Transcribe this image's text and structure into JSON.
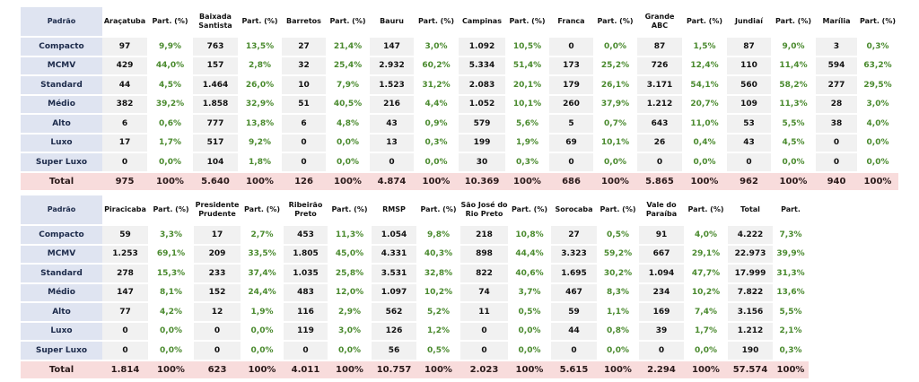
{
  "row_labels": [
    "Compacto",
    "MCMV",
    "Standard",
    "Médio",
    "Alto",
    "Luxo",
    "Super Luxo"
  ],
  "total_label": "Total",
  "header_first": "Padrão",
  "pct_header": "Part. (%)",
  "table1": {
    "cities": [
      {
        "name": "Araçatuba",
        "values": [
          "97",
          "429",
          "44",
          "382",
          "6",
          "17",
          "0"
        ],
        "pcts": [
          "9,9%",
          "44,0%",
          "4,5%",
          "39,2%",
          "0,6%",
          "1,7%",
          "0,0%"
        ],
        "total": "975",
        "total_pct": "100%"
      },
      {
        "name": "Baixada Santista",
        "values": [
          "763",
          "157",
          "1.464",
          "1.858",
          "777",
          "517",
          "104"
        ],
        "pcts": [
          "13,5%",
          "2,8%",
          "26,0%",
          "32,9%",
          "13,8%",
          "9,2%",
          "1,8%"
        ],
        "total": "5.640",
        "total_pct": "100%"
      },
      {
        "name": "Barretos",
        "values": [
          "27",
          "32",
          "10",
          "51",
          "6",
          "0",
          "0"
        ],
        "pcts": [
          "21,4%",
          "25,4%",
          "7,9%",
          "40,5%",
          "4,8%",
          "0,0%",
          "0,0%"
        ],
        "total": "126",
        "total_pct": "100%"
      },
      {
        "name": "Bauru",
        "values": [
          "147",
          "2.932",
          "1.523",
          "216",
          "43",
          "13",
          "0"
        ],
        "pcts": [
          "3,0%",
          "60,2%",
          "31,2%",
          "4,4%",
          "0,9%",
          "0,3%",
          "0,0%"
        ],
        "total": "4.874",
        "total_pct": "100%"
      },
      {
        "name": "Campinas",
        "values": [
          "1.092",
          "5.334",
          "2.083",
          "1.052",
          "579",
          "199",
          "30"
        ],
        "pcts": [
          "10,5%",
          "51,4%",
          "20,1%",
          "10,1%",
          "5,6%",
          "1,9%",
          "0,3%"
        ],
        "total": "10.369",
        "total_pct": "100%"
      },
      {
        "name": "Franca",
        "values": [
          "0",
          "173",
          "179",
          "260",
          "5",
          "69",
          "0"
        ],
        "pcts": [
          "0,0%",
          "25,2%",
          "26,1%",
          "37,9%",
          "0,7%",
          "10,1%",
          "0,0%"
        ],
        "total": "686",
        "total_pct": "100%"
      },
      {
        "name": "Grande ABC",
        "values": [
          "87",
          "726",
          "3.171",
          "1.212",
          "643",
          "26",
          "0"
        ],
        "pcts": [
          "1,5%",
          "12,4%",
          "54,1%",
          "20,7%",
          "11,0%",
          "0,4%",
          "0,0%"
        ],
        "total": "5.865",
        "total_pct": "100%"
      },
      {
        "name": "Jundiaí",
        "values": [
          "87",
          "110",
          "560",
          "109",
          "53",
          "43",
          "0"
        ],
        "pcts": [
          "9,0%",
          "11,4%",
          "58,2%",
          "11,3%",
          "5,5%",
          "4,5%",
          "0,0%"
        ],
        "total": "962",
        "total_pct": "100%"
      },
      {
        "name": "Marília",
        "values": [
          "3",
          "594",
          "277",
          "28",
          "38",
          "0",
          "0"
        ],
        "pcts": [
          "0,3%",
          "63,2%",
          "29,5%",
          "3,0%",
          "4,0%",
          "0,0%",
          "0,0%"
        ],
        "total": "940",
        "total_pct": "100%"
      }
    ]
  },
  "table2": {
    "cities": [
      {
        "name": "Piracicaba",
        "values": [
          "59",
          "1.253",
          "278",
          "147",
          "77",
          "0",
          "0"
        ],
        "pcts": [
          "3,3%",
          "69,1%",
          "15,3%",
          "8,1%",
          "4,2%",
          "0,0%",
          "0,0%"
        ],
        "total": "1.814",
        "total_pct": "100%"
      },
      {
        "name": "Presidente Prudente",
        "values": [
          "17",
          "209",
          "233",
          "152",
          "12",
          "0",
          "0"
        ],
        "pcts": [
          "2,7%",
          "33,5%",
          "37,4%",
          "24,4%",
          "1,9%",
          "0,0%",
          "0,0%"
        ],
        "total": "623",
        "total_pct": "100%"
      },
      {
        "name": "Ribeirão Preto",
        "values": [
          "453",
          "1.805",
          "1.035",
          "483",
          "116",
          "119",
          "0"
        ],
        "pcts": [
          "11,3%",
          "45,0%",
          "25,8%",
          "12,0%",
          "2,9%",
          "3,0%",
          "0,0%"
        ],
        "total": "4.011",
        "total_pct": "100%"
      },
      {
        "name": "RMSP",
        "values": [
          "1.054",
          "4.331",
          "3.531",
          "1.097",
          "562",
          "126",
          "56"
        ],
        "pcts": [
          "9,8%",
          "40,3%",
          "32,8%",
          "10,2%",
          "5,2%",
          "1,2%",
          "0,5%"
        ],
        "total": "10.757",
        "total_pct": "100%"
      },
      {
        "name": "São José do Rio Preto",
        "values": [
          "218",
          "898",
          "822",
          "74",
          "11",
          "0",
          "0"
        ],
        "pcts": [
          "10,8%",
          "44,4%",
          "40,6%",
          "3,7%",
          "0,5%",
          "0,0%",
          "0,0%"
        ],
        "total": "2.023",
        "total_pct": "100%"
      },
      {
        "name": "Sorocaba",
        "values": [
          "27",
          "3.323",
          "1.695",
          "467",
          "59",
          "44",
          "0"
        ],
        "pcts": [
          "0,5%",
          "59,2%",
          "30,2%",
          "8,3%",
          "1,1%",
          "0,8%",
          "0,0%"
        ],
        "total": "5.615",
        "total_pct": "100%"
      },
      {
        "name": "Vale do Paraíba",
        "values": [
          "91",
          "667",
          "1.094",
          "234",
          "169",
          "39",
          "0"
        ],
        "pcts": [
          "4,0%",
          "29,1%",
          "47,7%",
          "10,2%",
          "7,4%",
          "1,7%",
          "0,0%"
        ],
        "total": "2.294",
        "total_pct": "100%"
      }
    ],
    "grand_total": {
      "name": "Total",
      "pct_name": "Part.",
      "values": [
        "4.222",
        "22.973",
        "17.999",
        "7.822",
        "3.156",
        "1.212",
        "190"
      ],
      "pcts": [
        "7,3%",
        "39,9%",
        "31,3%",
        "13,6%",
        "5,5%",
        "2,1%",
        "0,3%"
      ],
      "total": "57.574",
      "total_pct": "100%"
    }
  },
  "colors": {
    "label_bg": "#dfe4f1",
    "value_bg": "#f1f1f1",
    "total_row_bg": "#f8dcdc",
    "pct_green": "#4a8a2e"
  }
}
